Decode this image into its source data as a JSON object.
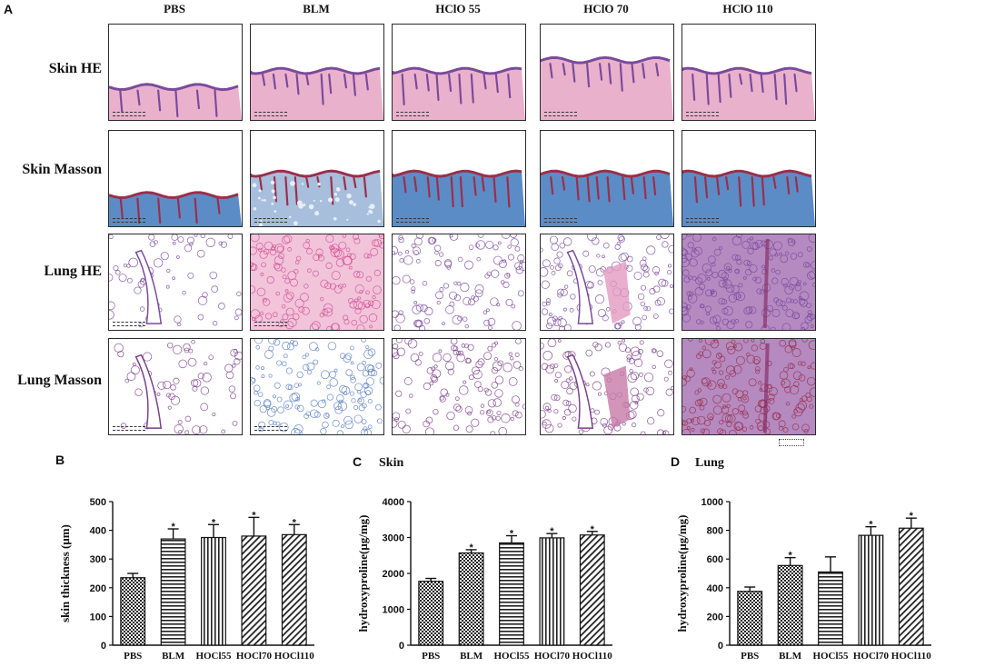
{
  "panel_a": {
    "letter": "A",
    "columns": [
      "PBS",
      "BLM",
      "HClO 55",
      "HClO 70",
      "HClO 110"
    ],
    "rows": [
      "Skin HE",
      "Skin Masson",
      "Lung HE",
      "Lung Masson"
    ]
  },
  "colors": {
    "he_pink": "#e8a9c6",
    "he_purple": "#7a4a9c",
    "masson_blue": "#4a7fc0",
    "masson_dark_blue": "#2f5fa6",
    "masson_red": "#9a2f4a",
    "bar_fill": "#555555",
    "axis": "#111111"
  },
  "chart_data": [
    {
      "letter": "B",
      "type": "bar",
      "title": "",
      "categories": [
        "PBS",
        "BLM",
        "HOCl55",
        "HOCl70",
        "HOCl110"
      ],
      "values": [
        235,
        370,
        375,
        380,
        385
      ],
      "errors": [
        15,
        35,
        45,
        65,
        35
      ],
      "significant": [
        false,
        true,
        true,
        true,
        true
      ],
      "star": "*",
      "patterns": [
        "checker",
        "hstripe",
        "vstripe",
        "diag",
        "diag"
      ],
      "ylabel": "skin thickness (μm)",
      "ylim": [
        0,
        500
      ],
      "yticks": [
        0,
        100,
        200,
        300,
        400,
        500
      ]
    },
    {
      "letter": "C",
      "type": "bar",
      "title": "Skin",
      "categories": [
        "PBS",
        "BLM",
        "HOCl55",
        "HOCl70",
        "HOCl110"
      ],
      "values": [
        1780,
        2570,
        2850,
        2990,
        3070
      ],
      "errors": [
        80,
        90,
        200,
        120,
        100
      ],
      "significant": [
        false,
        true,
        true,
        true,
        true
      ],
      "star": "*",
      "patterns": [
        "checker",
        "checker",
        "hstripe",
        "vstripe",
        "diag"
      ],
      "ylabel": "hydroxyproline(μg/mg)",
      "ylim": [
        0,
        4000
      ],
      "yticks": [
        0,
        1000,
        2000,
        3000,
        4000
      ]
    },
    {
      "letter": "D",
      "type": "bar",
      "title": "Lung",
      "categories": [
        "PBS",
        "BLM",
        "HOCl55",
        "HOCl70",
        "HOCl110"
      ],
      "values": [
        375,
        555,
        510,
        765,
        815
      ],
      "errors": [
        30,
        55,
        105,
        60,
        70
      ],
      "significant": [
        false,
        true,
        false,
        true,
        true
      ],
      "star": "*",
      "patterns": [
        "checker",
        "checker",
        "hstripe",
        "vstripe",
        "diag"
      ],
      "ylabel": "hydroxyproline(μg/mg)",
      "ylim": [
        0,
        1000
      ],
      "yticks": [
        0,
        200,
        400,
        600,
        800,
        1000
      ]
    }
  ]
}
